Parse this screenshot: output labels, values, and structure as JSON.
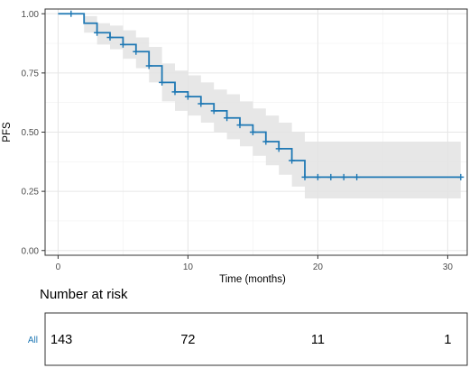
{
  "chart_data": {
    "type": "line",
    "subtype": "kaplan-meier",
    "xlabel": "Time (months)",
    "ylabel": "PFS",
    "xlim": [
      -1,
      31.5
    ],
    "ylim": [
      -0.02,
      1.02
    ],
    "xticks": [
      0,
      10,
      20,
      30
    ],
    "yticks": [
      0.0,
      0.25,
      0.5,
      0.75,
      1.0
    ],
    "ytick_labels": [
      "0.00",
      "0.25",
      "0.50",
      "0.75",
      "1.00"
    ],
    "grid": true,
    "colors": {
      "curve": "#1f78b4",
      "ci": "#e3e3e3",
      "grid": "#e6e6e6",
      "frame": "#333333"
    },
    "steps": [
      {
        "x": 0,
        "y": 1.0,
        "lo": 1.0,
        "hi": 1.0
      },
      {
        "x": 2,
        "y": 0.96,
        "lo": 0.92,
        "hi": 0.99
      },
      {
        "x": 3,
        "y": 0.92,
        "lo": 0.87,
        "hi": 0.96
      },
      {
        "x": 4,
        "y": 0.9,
        "lo": 0.85,
        "hi": 0.95
      },
      {
        "x": 5,
        "y": 0.87,
        "lo": 0.81,
        "hi": 0.93
      },
      {
        "x": 6,
        "y": 0.84,
        "lo": 0.77,
        "hi": 0.9
      },
      {
        "x": 7,
        "y": 0.78,
        "lo": 0.71,
        "hi": 0.86
      },
      {
        "x": 8,
        "y": 0.71,
        "lo": 0.63,
        "hi": 0.79
      },
      {
        "x": 9,
        "y": 0.67,
        "lo": 0.59,
        "hi": 0.76
      },
      {
        "x": 10,
        "y": 0.65,
        "lo": 0.57,
        "hi": 0.74
      },
      {
        "x": 11,
        "y": 0.62,
        "lo": 0.54,
        "hi": 0.71
      },
      {
        "x": 12,
        "y": 0.59,
        "lo": 0.5,
        "hi": 0.68
      },
      {
        "x": 13,
        "y": 0.56,
        "lo": 0.47,
        "hi": 0.66
      },
      {
        "x": 14,
        "y": 0.53,
        "lo": 0.44,
        "hi": 0.63
      },
      {
        "x": 15,
        "y": 0.5,
        "lo": 0.4,
        "hi": 0.6
      },
      {
        "x": 16,
        "y": 0.46,
        "lo": 0.36,
        "hi": 0.57
      },
      {
        "x": 17,
        "y": 0.43,
        "lo": 0.32,
        "hi": 0.54
      },
      {
        "x": 18,
        "y": 0.38,
        "lo": 0.27,
        "hi": 0.5
      },
      {
        "x": 19,
        "y": 0.31,
        "lo": 0.22,
        "hi": 0.46
      }
    ],
    "end_x": 31,
    "censor_times": [
      1,
      3,
      4,
      5,
      6,
      7,
      8,
      9,
      10,
      11,
      12,
      13,
      14,
      15,
      16,
      17,
      18,
      19,
      20,
      21,
      22,
      23,
      31
    ],
    "risk_table": {
      "title": "Number at risk",
      "group": "All",
      "times": [
        0,
        10,
        20,
        30
      ],
      "counts": [
        "143",
        "72",
        "11",
        "1"
      ]
    }
  }
}
